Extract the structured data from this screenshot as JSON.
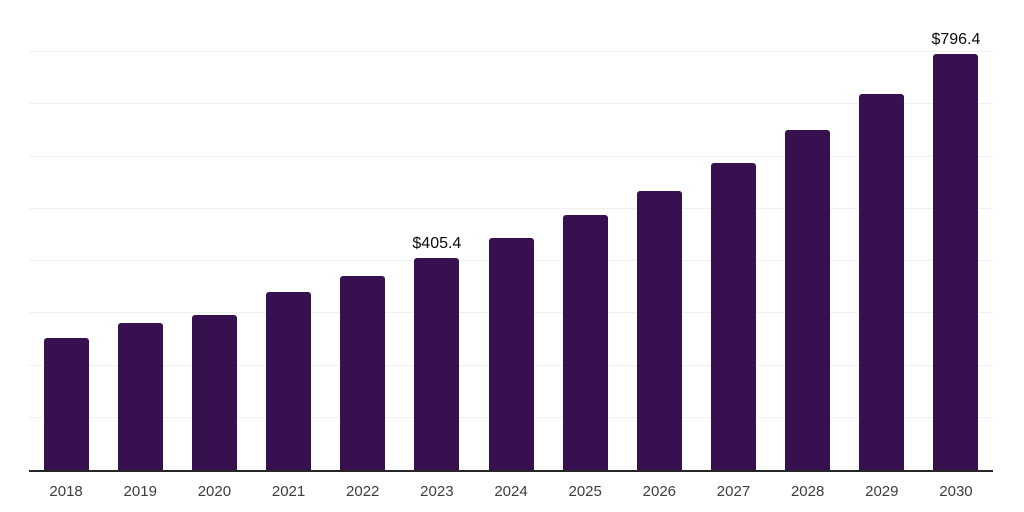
{
  "chart_data": {
    "type": "bar",
    "categories": [
      "2018",
      "2019",
      "2020",
      "2021",
      "2022",
      "2023",
      "2024",
      "2025",
      "2026",
      "2027",
      "2028",
      "2029",
      "2030"
    ],
    "values": [
      252.5,
      282.0,
      296.4,
      340.4,
      371.0,
      405.4,
      443.5,
      487.4,
      535.2,
      588.1,
      650.4,
      719.9,
      796.4
    ],
    "data_labels": [
      {
        "category": "2023",
        "text": "$405.4"
      },
      {
        "category": "2030",
        "text": "$796.4"
      }
    ],
    "ylim": [
      0,
      900
    ],
    "gridline_step": 100,
    "grid": "horizontal",
    "legend": "none",
    "colors": {
      "bar": "#37114F",
      "axis_line": "#262626",
      "gridline": "#F0F0F0",
      "tick_label": "#3D3D3D",
      "data_label": "#0A0A0A",
      "background": "#FFFFFF"
    }
  }
}
